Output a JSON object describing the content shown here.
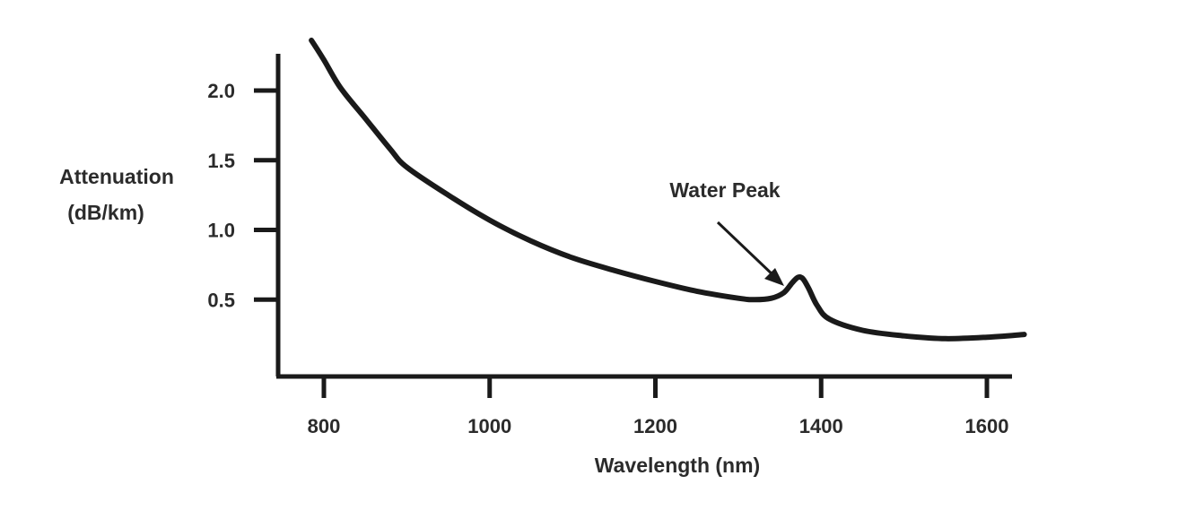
{
  "chart_data": {
    "type": "line",
    "title": "",
    "xlabel": "Wavelength (nm)",
    "ylabel_lines": [
      "Attenuation",
      "(dB/km)"
    ],
    "xlim": [
      750,
      1650
    ],
    "ylim": [
      0,
      2.2
    ],
    "xticks": [
      800,
      1000,
      1200,
      1400,
      1600
    ],
    "yticks": [
      0.5,
      1.0,
      1.5,
      2.0
    ],
    "xtick_labels": [
      "800",
      "1000",
      "1200",
      "1400",
      "1600"
    ],
    "ytick_labels": [
      "0.5",
      "1.0",
      "1.5",
      "2.0"
    ],
    "grid": false,
    "colors": {
      "line": "#1a1a1a",
      "axis": "#1a1a1a",
      "text": "#2b2b2b"
    },
    "series": [
      {
        "name": "Attenuation",
        "x": [
          785,
          800,
          820,
          850,
          880,
          900,
          950,
          1000,
          1050,
          1100,
          1150,
          1200,
          1250,
          1300,
          1320,
          1340,
          1355,
          1365,
          1372,
          1378,
          1385,
          1395,
          1410,
          1450,
          1500,
          1550,
          1600,
          1645
        ],
        "y": [
          2.36,
          2.22,
          2.02,
          1.8,
          1.58,
          1.45,
          1.25,
          1.07,
          0.92,
          0.8,
          0.71,
          0.63,
          0.56,
          0.51,
          0.5,
          0.51,
          0.55,
          0.62,
          0.66,
          0.65,
          0.58,
          0.46,
          0.36,
          0.28,
          0.24,
          0.22,
          0.23,
          0.25
        ]
      }
    ],
    "annotations": [
      {
        "text": "Water Peak",
        "x": 1380,
        "y": 0.63
      }
    ]
  }
}
